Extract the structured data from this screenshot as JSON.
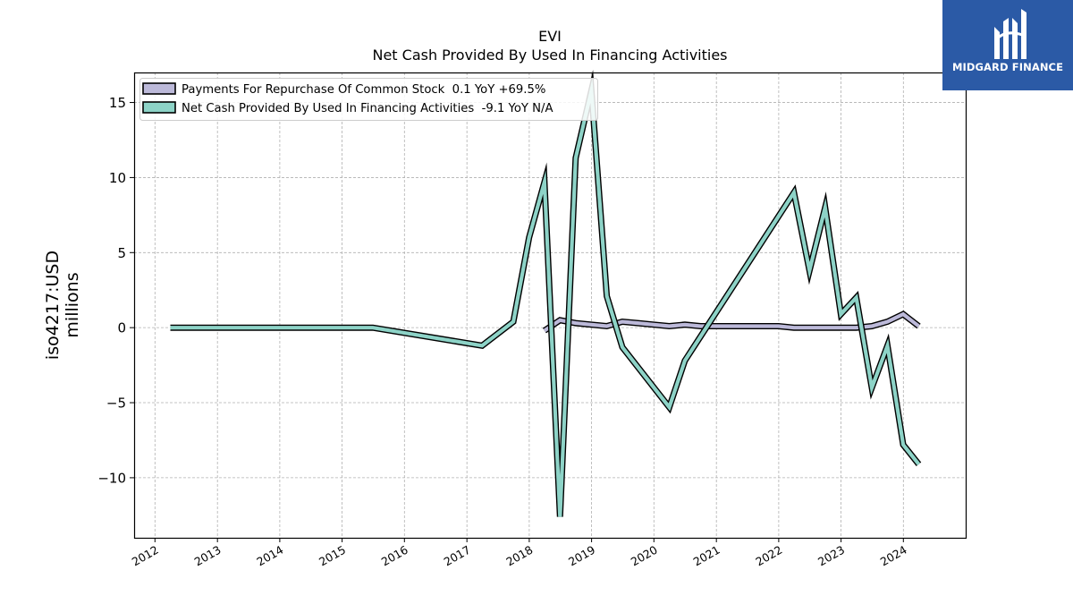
{
  "chart_data": {
    "type": "line",
    "title": "EVI",
    "subtitle": "Net Cash Provided By Used In Financing Activities",
    "ylabel_line1": "iso4217:USD",
    "ylabel_line2": "millions",
    "xlabel": "",
    "xlim": [
      "2011-09-01",
      "2024-12-31"
    ],
    "ylim": [
      -14,
      17
    ],
    "x_ticks": [
      "2012",
      "2013",
      "2014",
      "2015",
      "2016",
      "2017",
      "2018",
      "2019",
      "2020",
      "2021",
      "2022",
      "2023",
      "2024"
    ],
    "y_ticks": [
      15,
      10,
      5,
      0,
      -5,
      -10
    ],
    "y_tick_labels": [
      "15",
      "10",
      "5",
      "0",
      "−5",
      "−10"
    ],
    "grid": true,
    "legend_position": "top-left",
    "series": [
      {
        "name": "Payments For Repurchase Of Common Stock  0.1 YoY +69.5%",
        "color": "#bcb9d9",
        "points": [
          [
            "2018-03-31",
            -0.2
          ],
          [
            "2018-06-30",
            0.5
          ],
          [
            "2018-09-30",
            0.3
          ],
          [
            "2018-12-31",
            0.2
          ],
          [
            "2019-03-31",
            0.1
          ],
          [
            "2019-06-30",
            0.4
          ],
          [
            "2019-09-30",
            0.3
          ],
          [
            "2019-12-31",
            0.2
          ],
          [
            "2020-03-31",
            0.1
          ],
          [
            "2020-06-30",
            0.2
          ],
          [
            "2020-09-30",
            0.1
          ],
          [
            "2020-12-31",
            0.1
          ],
          [
            "2021-06-30",
            0.1
          ],
          [
            "2021-12-31",
            0.1
          ],
          [
            "2022-03-31",
            0.0
          ],
          [
            "2022-06-30",
            0.0
          ],
          [
            "2022-09-30",
            0.0
          ],
          [
            "2022-12-31",
            0.0
          ],
          [
            "2023-03-31",
            0.0
          ],
          [
            "2023-06-30",
            0.1
          ],
          [
            "2023-09-30",
            0.4
          ],
          [
            "2023-12-31",
            0.9
          ],
          [
            "2024-03-31",
            0.1
          ]
        ]
      },
      {
        "name": "Net Cash Provided By Used In Financing Activities  -9.1 YoY N/A",
        "color": "#8dd3c7",
        "points": [
          [
            "2012-03-31",
            0.0
          ],
          [
            "2015-06-30",
            0.0
          ],
          [
            "2017-03-31",
            -1.2
          ],
          [
            "2017-09-30",
            0.4
          ],
          [
            "2017-12-31",
            6.0
          ],
          [
            "2018-03-31",
            9.7
          ],
          [
            "2018-06-30",
            -12.6
          ],
          [
            "2018-09-30",
            11.3
          ],
          [
            "2018-12-31",
            15.8
          ],
          [
            "2019-03-31",
            2.1
          ],
          [
            "2019-06-30",
            -1.3
          ],
          [
            "2020-03-31",
            -5.3
          ],
          [
            "2020-06-30",
            -2.2
          ],
          [
            "2022-03-31",
            9.0
          ],
          [
            "2022-06-30",
            3.8
          ],
          [
            "2022-09-30",
            8.0
          ],
          [
            "2022-12-31",
            0.9
          ],
          [
            "2023-03-31",
            2.0
          ],
          [
            "2023-06-30",
            -4.0
          ],
          [
            "2023-09-30",
            -1.2
          ],
          [
            "2023-12-31",
            -7.8
          ],
          [
            "2024-03-31",
            -9.1
          ]
        ]
      }
    ]
  },
  "logo": {
    "text": "MIDGARD FINANCE",
    "background": "#2b5aa6",
    "foreground": "#ffffff"
  }
}
